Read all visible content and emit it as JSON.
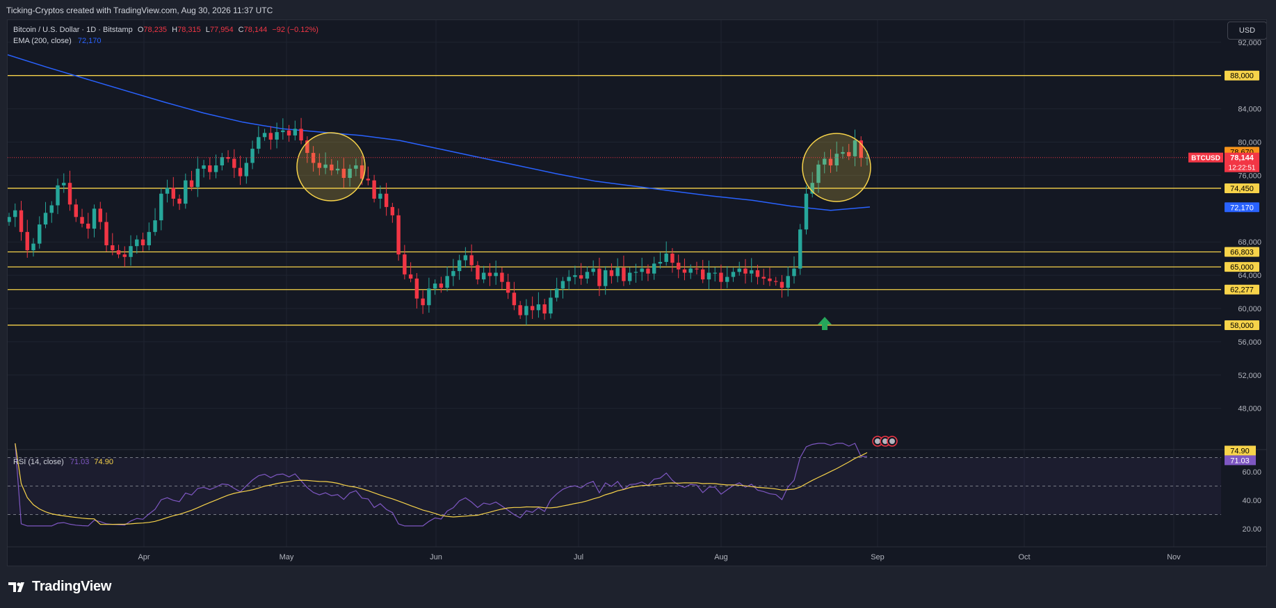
{
  "header": {
    "attribution": "Ticking-Cryptos created with TradingView.com, Aug 30, 2026 11:37 UTC"
  },
  "legend": {
    "symbol": "Bitcoin / U.S. Dollar · 1D · Bitstamp",
    "o_key": "O",
    "o_val": "78,235",
    "h_key": "H",
    "h_val": "78,315",
    "l_key": "L",
    "l_val": "77,954",
    "c_key": "C",
    "c_val": "78,144",
    "change": "−92 (−0.12%)",
    "ema_label": "EMA (200, close)",
    "ema_val": "72,170"
  },
  "currency_button": "USD",
  "rsi_legend": {
    "label": "RSI (14, close)",
    "val1": "71.03",
    "val2": "74.90"
  },
  "footer": {
    "brand": "TradingView"
  },
  "colors": {
    "up": "#26a69a",
    "down": "#f23645",
    "ema": "#2962ff",
    "level": "#f7d34a",
    "rsi": "#7e57c2",
    "rsi_ma": "#f7d34a",
    "price_tag": "#f23645",
    "orange_tag": "#f7931a"
  },
  "chart_data": {
    "type": "candlestick",
    "title": "Bitcoin / U.S. Dollar · 1D · Bitstamp",
    "y_ticks": [
      "92,000",
      "84,000",
      "80,000",
      "76,000",
      "68,000",
      "64,000",
      "60,000",
      "56,000",
      "52,000",
      "48,000"
    ],
    "y_tick_values": [
      92000,
      84000,
      80000,
      76000,
      68000,
      64000,
      60000,
      56000,
      52000,
      48000
    ],
    "ylim": [
      45000,
      94500
    ],
    "x_ticks": [
      "Apr",
      "May",
      "Jun",
      "Jul",
      "Aug",
      "Sep",
      "Oct",
      "Nov"
    ],
    "horizontal_levels": [
      {
        "value": 88000,
        "label": "88,000"
      },
      {
        "value": 74450,
        "label": "74,450"
      },
      {
        "value": 66803,
        "label": "66,803"
      },
      {
        "value": 65000,
        "label": "65,000"
      },
      {
        "value": 62277,
        "label": "62,277"
      },
      {
        "value": 58000,
        "label": "58,000"
      }
    ],
    "price_tags": [
      {
        "value": 78670,
        "label": "78,670"
      },
      {
        "value": 78144,
        "label": "78,144",
        "symbol": "BTCUSD",
        "countdown": "12:22:51"
      },
      {
        "value": 72170,
        "label": "72,170"
      }
    ],
    "ema_200": [
      90500,
      89000,
      87600,
      86200,
      84800,
      83500,
      82400,
      81600,
      81200,
      80800,
      80200,
      79200,
      78200,
      77200,
      76200,
      75300,
      74700,
      74100,
      73500,
      73000,
      72300,
      71800,
      72200
    ],
    "candles_close": [
      71000,
      71800,
      69200,
      67000,
      67800,
      70100,
      71500,
      72400,
      74800,
      75100,
      72500,
      71000,
      70200,
      69600,
      72000,
      70400,
      67600,
      67000,
      66500,
      66200,
      67500,
      68300,
      67600,
      69200,
      70600,
      73800,
      74500,
      73200,
      72600,
      75400,
      74600,
      76800,
      77200,
      76400,
      77200,
      78200,
      78000,
      76900,
      75900,
      77500,
      79200,
      80600,
      81100,
      80300,
      81200,
      81400,
      80800,
      81600,
      80200,
      78700,
      77500,
      76900,
      77300,
      76600,
      76800,
      75700,
      76800,
      77200,
      75600,
      75400,
      73200,
      73800,
      72200,
      71200,
      66500,
      64100,
      63600,
      61200,
      60400,
      62400,
      63000,
      62500,
      63900,
      64500,
      65800,
      66400,
      65200,
      63500,
      64300,
      63900,
      64300,
      63200,
      61900,
      60400,
      59200,
      60300,
      59800,
      60500,
      59400,
      61300,
      62400,
      63300,
      63800,
      64000,
      63600,
      64400,
      64800,
      62700,
      64600,
      63900,
      64900,
      63300,
      64300,
      64400,
      64800,
      64200,
      65400,
      65600,
      66600,
      65500,
      64700,
      64300,
      64800,
      64700,
      63500,
      64300,
      64300,
      63200,
      63800,
      64400,
      64800,
      64200,
      64600,
      63800,
      63600,
      63300,
      63200,
      62500,
      63900,
      64800,
      69500,
      73800,
      75100,
      77300,
      78000,
      77200,
      78600,
      78800,
      78300,
      80200,
      78100,
      78144
    ],
    "rsi": {
      "label": "RSI (14, close)",
      "value": 71.03,
      "ma": 74.9,
      "ticks": [
        60,
        40,
        20
      ],
      "upper_band": 70,
      "mid_band": 50,
      "lower_band": 30
    }
  }
}
